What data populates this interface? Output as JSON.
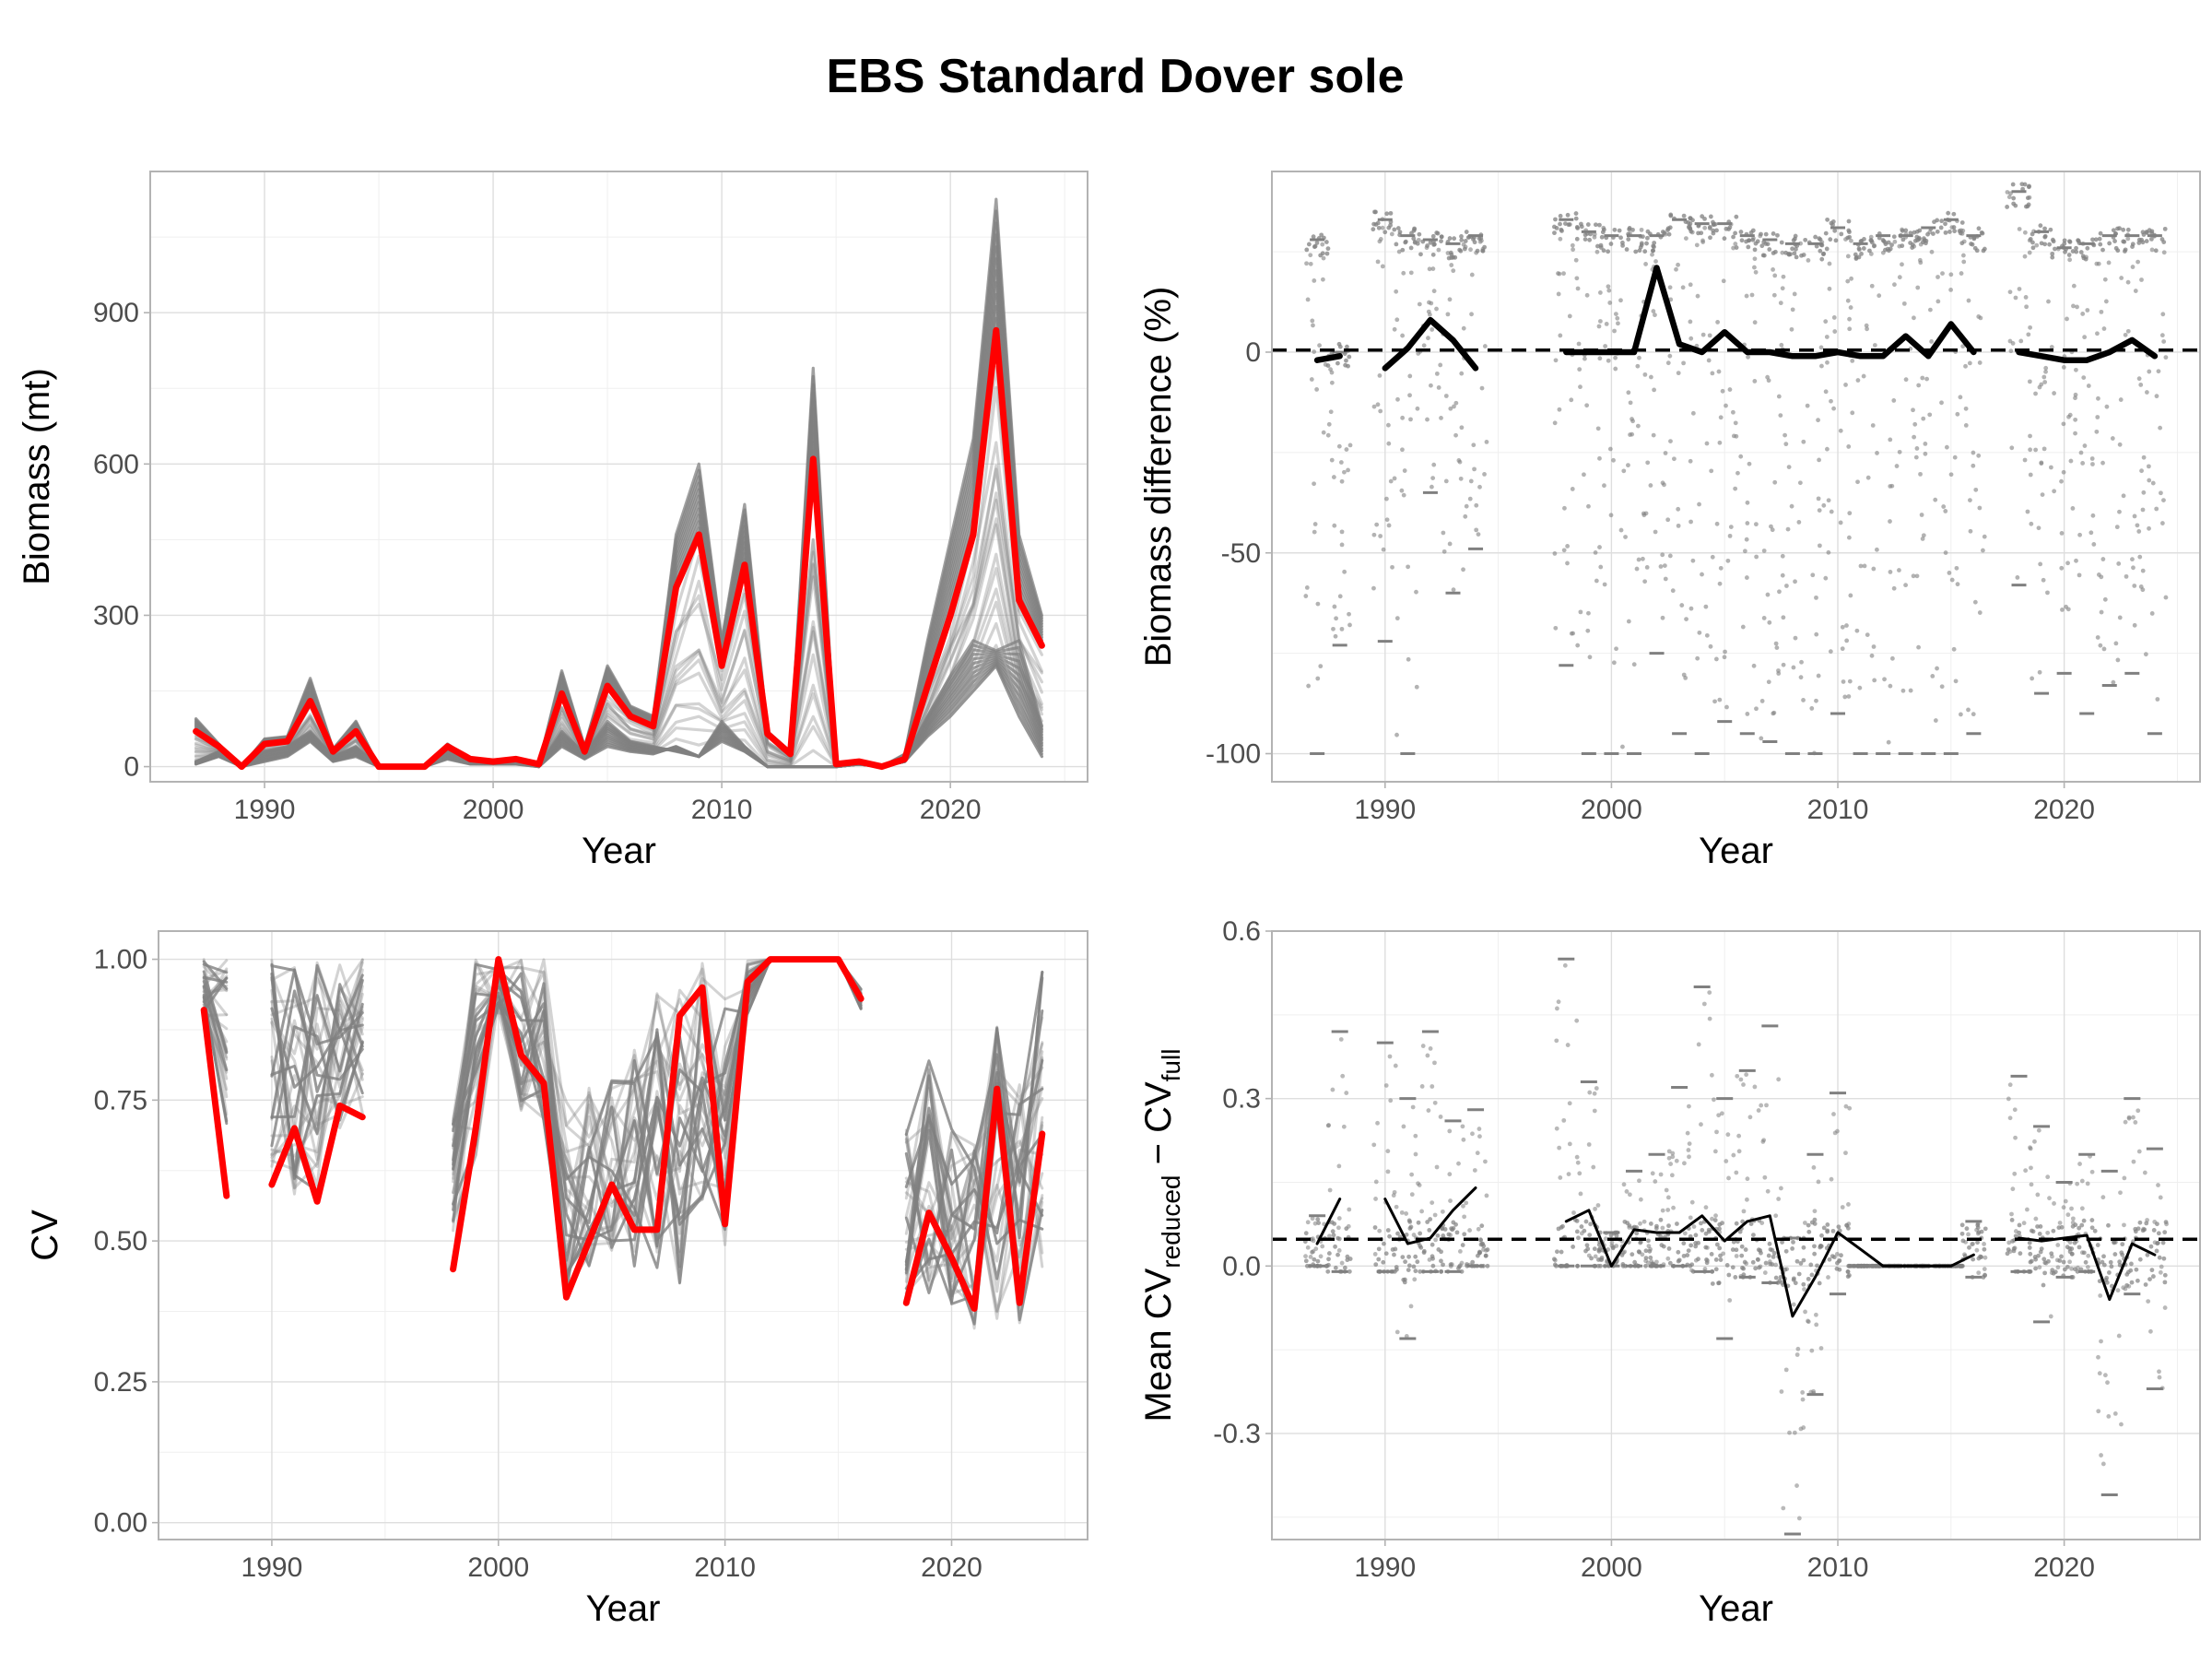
{
  "title": "EBS Standard Dover sole",
  "colors": {
    "highlight": "#ff0000",
    "replicates": "#808080",
    "summary": "#000000",
    "reference_line": "#000000",
    "grid": "#dedede",
    "border": "#b3b3b3"
  },
  "chart_data": [
    {
      "id": "biomass",
      "type": "line",
      "xlabel": "Year",
      "ylabel": "Biomass (mt)",
      "xlim": [
        1985,
        2026
      ],
      "ylim": [
        -30,
        1180
      ],
      "x_ticks": [
        1990,
        2000,
        2010,
        2020
      ],
      "y_ticks": [
        0,
        300,
        600,
        900
      ],
      "grid": true,
      "x": [
        1987,
        1988,
        1989,
        1990,
        1991,
        1992,
        1993,
        1994,
        1995,
        1996,
        1997,
        1998,
        1999,
        2000,
        2001,
        2002,
        2003,
        2004,
        2005,
        2006,
        2007,
        2008,
        2009,
        2010,
        2011,
        2012,
        2013,
        2014,
        2015,
        2016,
        2017,
        2018,
        2019,
        2020,
        2021,
        2022,
        2023,
        2024
      ],
      "highlight_series": [
        70,
        40,
        0,
        45,
        50,
        130,
        30,
        70,
        0,
        0,
        0,
        40,
        15,
        10,
        15,
        5,
        145,
        30,
        160,
        100,
        80,
        355,
        460,
        200,
        400,
        65,
        25,
        610,
        5,
        10,
        0,
        15,
        160,
        300,
        460,
        865,
        330,
        240
      ],
      "replicate_upper": [
        95,
        45,
        0,
        55,
        60,
        175,
        35,
        90,
        0,
        0,
        0,
        45,
        15,
        10,
        15,
        5,
        190,
        40,
        200,
        120,
        100,
        460,
        600,
        250,
        520,
        70,
        30,
        790,
        5,
        10,
        0,
        25,
        250,
        450,
        650,
        1125,
        460,
        300
      ],
      "replicate_lower": [
        5,
        20,
        0,
        10,
        20,
        50,
        10,
        20,
        0,
        0,
        0,
        15,
        5,
        5,
        5,
        0,
        40,
        15,
        40,
        30,
        25,
        40,
        20,
        50,
        30,
        0,
        0,
        0,
        0,
        5,
        0,
        10,
        60,
        100,
        150,
        200,
        100,
        20
      ],
      "low_group_series": [
        10,
        30,
        0,
        30,
        40,
        70,
        20,
        40,
        0,
        0,
        0,
        30,
        10,
        5,
        10,
        0,
        70,
        25,
        90,
        50,
        40,
        30,
        20,
        90,
        40,
        0,
        0,
        0,
        0,
        5,
        0,
        10,
        100,
        180,
        250,
        230,
        250,
        80
      ]
    },
    {
      "id": "biomass_difference",
      "type": "scatter",
      "xlabel": "Year",
      "ylabel": "Biomass difference (%)",
      "xlim": [
        1985,
        2026
      ],
      "ylim": [
        -107,
        45
      ],
      "x_ticks": [
        1990,
        2000,
        2010,
        2020
      ],
      "y_ticks": [
        -100,
        -50,
        0
      ],
      "grid": true,
      "reference_y": 0.5,
      "mean_segments": [
        {
          "x": [
            1987,
            1988
          ],
          "y": [
            -2,
            -1
          ]
        },
        {
          "x": [
            1990,
            1991,
            1992,
            1993,
            1994
          ],
          "y": [
            -4,
            1,
            8,
            3,
            -4
          ]
        },
        {
          "x": [
            1998,
            1999,
            2000,
            2001,
            2002,
            2003,
            2004,
            2005,
            2006,
            2007,
            2008,
            2009,
            2010,
            2011,
            2012,
            2013,
            2014,
            2015,
            2016
          ],
          "y": [
            0,
            0,
            0,
            0,
            21,
            2,
            0,
            5,
            0,
            0,
            -1,
            -1,
            0,
            -1,
            -1,
            4,
            -1,
            7,
            0
          ]
        },
        {
          "x": [
            2018,
            2019,
            2020,
            2021,
            2022,
            2023,
            2024
          ],
          "y": [
            0,
            -1,
            -2,
            -2,
            0,
            3,
            -1
          ]
        }
      ],
      "replicate_spread": {
        "x": [
          1987,
          1988,
          1990,
          1991,
          1992,
          1993,
          1994,
          1998,
          1999,
          2000,
          2001,
          2002,
          2003,
          2004,
          2005,
          2006,
          2007,
          2008,
          2009,
          2010,
          2011,
          2012,
          2013,
          2014,
          2015,
          2016,
          2018,
          2019,
          2020,
          2021,
          2022,
          2023,
          2024
        ],
        "min": [
          -100,
          -73,
          -72,
          -100,
          -35,
          -60,
          -49,
          -78,
          -100,
          -100,
          -100,
          -75,
          -95,
          -100,
          -92,
          -95,
          -97,
          -100,
          -100,
          -90,
          -100,
          -100,
          -100,
          -100,
          -100,
          -95,
          -58,
          -85,
          -80,
          -90,
          -83,
          -80,
          -95
        ],
        "max": [
          30,
          2,
          35,
          31,
          30,
          29,
          31,
          35,
          32,
          31,
          31,
          31,
          35,
          34,
          34,
          31,
          30,
          29,
          29,
          33,
          29,
          31,
          31,
          33,
          35,
          31,
          42,
          32,
          28,
          29,
          31,
          31,
          31
        ]
      }
    },
    {
      "id": "cv",
      "type": "line",
      "xlabel": "Year",
      "ylabel": "CV",
      "xlim": [
        1985,
        2026
      ],
      "ylim": [
        -0.03,
        1.05
      ],
      "x_ticks": [
        1990,
        2000,
        2010,
        2020
      ],
      "y_ticks": [
        0.0,
        0.25,
        0.5,
        0.75,
        1.0
      ],
      "y_tick_labels": [
        "0.00",
        "0.25",
        "0.50",
        "0.75",
        "1.00"
      ],
      "grid": true,
      "highlight_segments": [
        {
          "x": [
            1987,
            1988
          ],
          "y": [
            0.91,
            0.58
          ]
        },
        {
          "x": [
            1990,
            1991,
            1992,
            1993,
            1994
          ],
          "y": [
            0.6,
            0.7,
            0.57,
            0.74,
            0.72
          ]
        },
        {
          "x": [
            1998,
            1999,
            2000,
            2001,
            2002,
            2003,
            2004,
            2005,
            2006,
            2007,
            2008,
            2009,
            2010,
            2011,
            2012,
            2013,
            2014,
            2015,
            2016
          ],
          "y": [
            0.45,
            0.7,
            1.0,
            0.83,
            0.78,
            0.4,
            0.5,
            0.6,
            0.52,
            0.52,
            0.9,
            0.95,
            0.53,
            0.96,
            1.0,
            1.0,
            1.0,
            1.0,
            0.93
          ]
        },
        {
          "x": [
            2018,
            2019,
            2020,
            2021,
            2022,
            2023,
            2024
          ],
          "y": [
            0.39,
            0.55,
            0.47,
            0.38,
            0.77,
            0.39,
            0.69
          ]
        }
      ],
      "replicate_band": {
        "segments": [
          {
            "x": [
              1987,
              1988
            ],
            "upper": [
              1.0,
              1.0
            ],
            "lower": [
              0.9,
              0.7
            ]
          },
          {
            "x": [
              1990,
              1991,
              1992,
              1993,
              1994
            ],
            "upper": [
              1.0,
              1.0,
              1.0,
              1.0,
              1.0
            ],
            "lower": [
              0.6,
              0.57,
              0.57,
              0.7,
              0.72
            ]
          },
          {
            "x": [
              1998,
              1999,
              2000,
              2001,
              2002,
              2003,
              2004,
              2005,
              2006,
              2007,
              2008,
              2009,
              2010,
              2011,
              2012,
              2013,
              2014,
              2015,
              2016
            ],
            "upper": [
              0.72,
              1.0,
              1.0,
              1.0,
              1.0,
              0.75,
              0.78,
              0.8,
              0.85,
              0.95,
              1.0,
              1.0,
              0.95,
              1.0,
              1.0,
              1.0,
              1.0,
              1.0,
              0.95
            ],
            "lower": [
              0.45,
              0.65,
              0.9,
              0.7,
              0.7,
              0.4,
              0.45,
              0.48,
              0.45,
              0.45,
              0.42,
              0.55,
              0.48,
              0.9,
              1.0,
              1.0,
              1.0,
              1.0,
              0.91
            ]
          },
          {
            "x": [
              2018,
              2019,
              2020,
              2021,
              2022,
              2023,
              2024
            ],
            "upper": [
              0.73,
              0.82,
              0.72,
              0.7,
              0.88,
              0.8,
              1.0
            ],
            "lower": [
              0.38,
              0.4,
              0.38,
              0.34,
              0.36,
              0.35,
              0.45
            ]
          }
        ]
      }
    },
    {
      "id": "mean_cv_difference",
      "type": "scatter",
      "xlabel": "Year",
      "ylabel": "Mean CVreduced − CVfull",
      "ylabel_parts": {
        "prefix": "Mean CV",
        "sub1": "reduced",
        "middle": " − CV",
        "sub2": "full"
      },
      "xlim": [
        1985,
        2026
      ],
      "ylim": [
        -0.49,
        0.6
      ],
      "x_ticks": [
        1990,
        2000,
        2010,
        2020
      ],
      "y_ticks": [
        -0.3,
        0.0,
        0.3,
        0.6
      ],
      "y_tick_labels": [
        "-0.3",
        "0.0",
        "0.3",
        "0.6"
      ],
      "grid": true,
      "reference_y": 0.048,
      "mean_segments": [
        {
          "x": [
            1987,
            1988
          ],
          "y": [
            0.04,
            0.12
          ]
        },
        {
          "x": [
            1990,
            1991,
            1992,
            1993,
            1994
          ],
          "y": [
            0.12,
            0.04,
            0.05,
            0.1,
            0.14
          ]
        },
        {
          "x": [
            1998,
            1999,
            2000,
            2001,
            2002,
            2003,
            2004,
            2005,
            2006,
            2007,
            2008,
            2009,
            2010,
            2011,
            2012,
            2013,
            2014,
            2015,
            2016
          ],
          "y": [
            0.08,
            0.1,
            0.0,
            0.065,
            0.06,
            0.06,
            0.09,
            0.045,
            0.08,
            0.09,
            -0.09,
            -0.02,
            0.06,
            0.03,
            0.0,
            0.0,
            0.0,
            0.0,
            0.02
          ]
        },
        {
          "x": [
            2018,
            2019,
            2020,
            2021,
            2022,
            2023,
            2024
          ],
          "y": [
            0.05,
            0.045,
            0.05,
            0.055,
            -0.06,
            0.04,
            0.02
          ]
        }
      ],
      "replicate_spread": {
        "x": [
          1987,
          1988,
          1990,
          1991,
          1992,
          1993,
          1994,
          1998,
          1999,
          2000,
          2001,
          2002,
          2003,
          2004,
          2005,
          2006,
          2007,
          2008,
          2009,
          2010,
          2011,
          2012,
          2013,
          2014,
          2015,
          2016,
          2018,
          2019,
          2020,
          2021,
          2022,
          2023,
          2024
        ],
        "min": [
          0.0,
          -0.01,
          -0.01,
          -0.13,
          -0.01,
          -0.01,
          0.0,
          0.0,
          0.0,
          0.0,
          0.0,
          0.0,
          0.0,
          -0.01,
          -0.13,
          -0.02,
          -0.03,
          -0.48,
          -0.23,
          -0.05,
          0.0,
          0.0,
          0.0,
          0.0,
          0.0,
          -0.02,
          -0.01,
          -0.1,
          -0.02,
          -0.01,
          -0.41,
          -0.05,
          -0.22
        ],
        "max": [
          0.09,
          0.42,
          0.4,
          0.3,
          0.42,
          0.26,
          0.28,
          0.55,
          0.33,
          0.06,
          0.17,
          0.2,
          0.32,
          0.5,
          0.3,
          0.35,
          0.43,
          0.05,
          0.2,
          0.31,
          0.0,
          0.0,
          0.0,
          0.0,
          0.0,
          0.08,
          0.34,
          0.25,
          0.15,
          0.2,
          0.17,
          0.3,
          0.21
        ]
      }
    }
  ]
}
